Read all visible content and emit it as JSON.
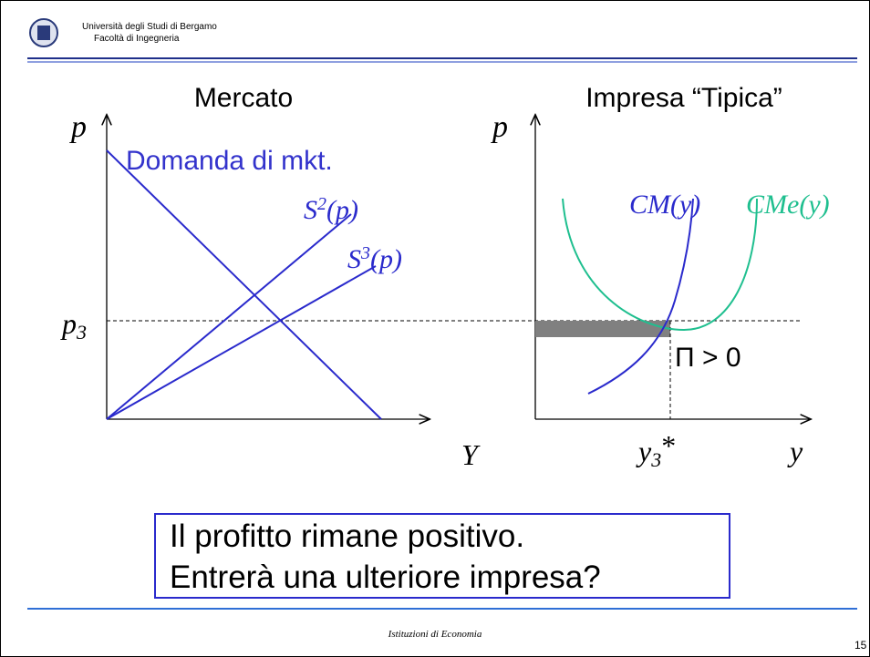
{
  "header": {
    "university": "Università degli Studi di Bergamo",
    "faculty": "Facoltà di Ingegneria"
  },
  "left": {
    "title": "Mercato",
    "y_axis": "p",
    "x_axis": "Y",
    "price": {
      "letter": "p",
      "sub": "3"
    },
    "demand": "Domanda di mkt.",
    "s2": {
      "letter": "S",
      "sup": "2",
      "rest": "(p)"
    },
    "s3": {
      "letter": "S",
      "sup": "3",
      "rest": "(p)"
    }
  },
  "right": {
    "title": "Impresa “Tipica”",
    "y_axis": "p",
    "x_axis": "y",
    "quantity": {
      "letter": "y",
      "sub": "3",
      "rest": "*"
    },
    "cm": {
      "name": "CM",
      "arg": "(y)"
    },
    "cme": {
      "name": "CMe",
      "arg": "(y)"
    },
    "profit": "Π > 0"
  },
  "box": {
    "lines": [
      "Il profitto rimane positivo.",
      "Entrerà una ulteriore impresa?"
    ]
  },
  "footer": {
    "course": "Istituzioni di Economia",
    "page": "15"
  }
}
